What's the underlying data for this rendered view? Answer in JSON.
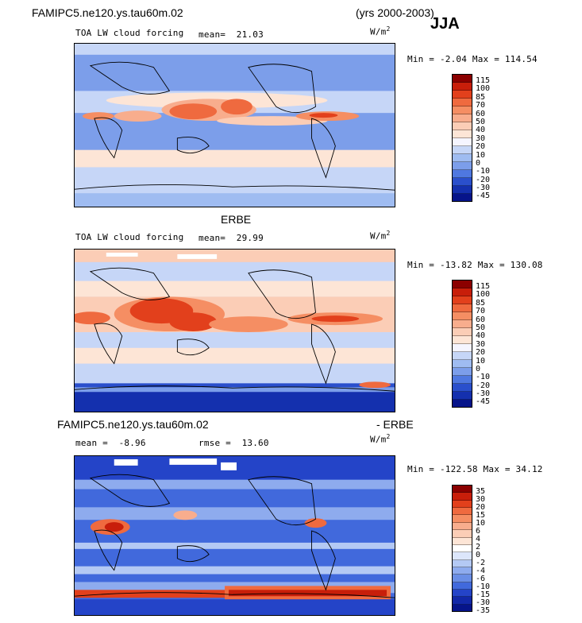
{
  "header": {
    "case_name": "FAMIPC5.ne120.ys.tau60m.02",
    "years": "(yrs 2000-2003)",
    "season": "JJA"
  },
  "panel1": {
    "variable": "TOA LW cloud forcing",
    "mean_label": "mean=",
    "mean_value": "21.03",
    "units": "W/m",
    "units_exp": "2",
    "min_label": "Min =",
    "min_value": "-2.04",
    "max_label": "Max =",
    "max_value": "114.54"
  },
  "panel2": {
    "title": "ERBE",
    "variable": "TOA LW cloud forcing",
    "mean_label": "mean=",
    "mean_value": "29.99",
    "units": "W/m",
    "units_exp": "2",
    "min_label": "Min =",
    "min_value": "-13.82",
    "max_label": "Max =",
    "max_value": "130.08"
  },
  "panel3": {
    "title_left": "FAMIPC5.ne120.ys.tau60m.02",
    "title_right": "- ERBE",
    "mean_label": "mean =",
    "mean_value": "-8.96",
    "rmse_label": "rmse =",
    "rmse_value": "13.60",
    "units": "W/m",
    "units_exp": "2",
    "min_label": "Min =",
    "min_value": "-122.58",
    "max_label": "Max =",
    "max_value": "34.12"
  },
  "colorbar_abs": {
    "levels": [
      "115",
      "100",
      "85",
      "70",
      "60",
      "50",
      "40",
      "30",
      "20",
      "10",
      "0",
      "-10",
      "-20",
      "-30",
      "-45"
    ],
    "colors": [
      "#8b0000",
      "#c81e0a",
      "#e2401c",
      "#ef6a3f",
      "#f58e63",
      "#f8ad8d",
      "#fbcdb6",
      "#fde5d6",
      "#f5f5ff",
      "#c6d6f7",
      "#9fbcf1",
      "#7c9eea",
      "#4f78e0",
      "#2a4fcc",
      "#1430ae",
      "#06148a"
    ]
  },
  "colorbar_diff": {
    "levels": [
      "35",
      "30",
      "20",
      "15",
      "10",
      "6",
      "4",
      "2",
      "0",
      "-2",
      "-4",
      "-6",
      "-10",
      "-15",
      "-30",
      "-35"
    ],
    "colors": [
      "#8b0000",
      "#c81e0a",
      "#e2401c",
      "#ef6a3f",
      "#f58e63",
      "#f8ad8d",
      "#fbcdb6",
      "#fde5d6",
      "#ffffff",
      "#dce6fb",
      "#b4c9f4",
      "#8eabee",
      "#6a8ee6",
      "#4169dc",
      "#2444c8",
      "#1228a8",
      "#06148a"
    ]
  },
  "chart_data": [
    {
      "type": "heatmap",
      "title": "FAMIPC5.ne120.ys.tau60m.02 TOA LW cloud forcing (yrs 2000-2003) JJA",
      "units": "W/m2",
      "mean": 21.03,
      "min": -2.04,
      "max": 114.54,
      "contour_levels": [
        -45,
        -30,
        -20,
        -10,
        0,
        10,
        20,
        30,
        40,
        50,
        60,
        70,
        85,
        100,
        115
      ]
    },
    {
      "type": "heatmap",
      "title": "ERBE TOA LW cloud forcing",
      "units": "W/m2",
      "mean": 29.99,
      "min": -13.82,
      "max": 130.08,
      "contour_levels": [
        -45,
        -30,
        -20,
        -10,
        0,
        10,
        20,
        30,
        40,
        50,
        60,
        70,
        85,
        100,
        115
      ]
    },
    {
      "type": "heatmap",
      "title": "FAMIPC5.ne120.ys.tau60m.02 - ERBE",
      "units": "W/m2",
      "mean": -8.96,
      "rmse": 13.6,
      "min": -122.58,
      "max": 34.12,
      "contour_levels": [
        -35,
        -30,
        -15,
        -10,
        -6,
        -4,
        -2,
        0,
        2,
        4,
        6,
        10,
        15,
        20,
        30,
        35
      ]
    }
  ]
}
